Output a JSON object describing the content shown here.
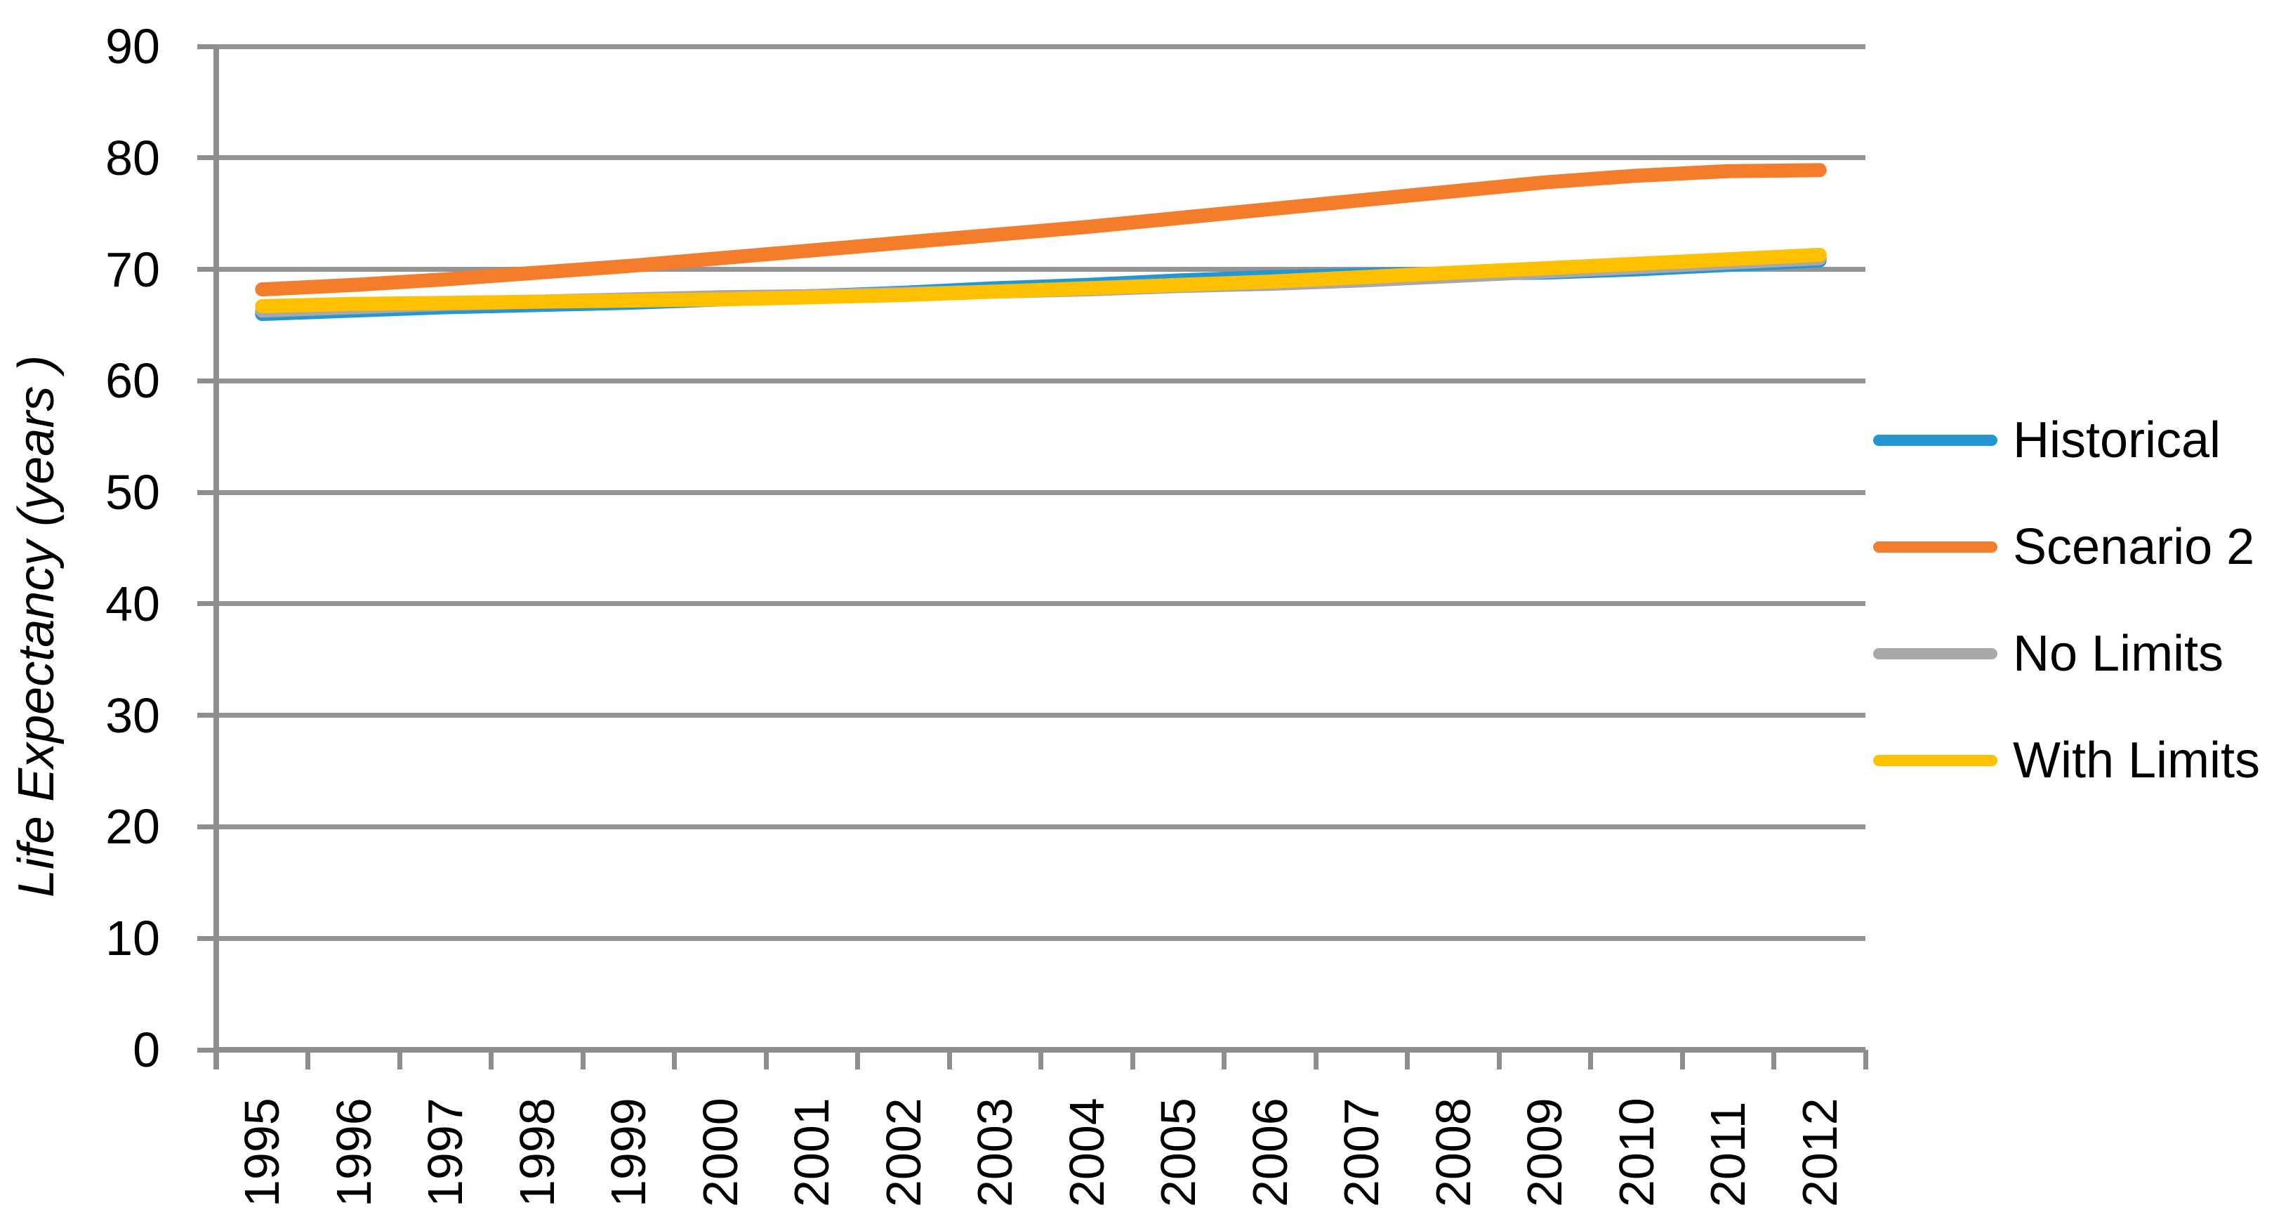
{
  "chart_data": {
    "type": "line",
    "title": "",
    "xlabel": "",
    "ylabel": "Life Expectancy (years )",
    "x": [
      1995,
      1996,
      1997,
      1998,
      1999,
      2000,
      2001,
      2002,
      2003,
      2004,
      2005,
      2006,
      2007,
      2008,
      2009,
      2010,
      2011,
      2012
    ],
    "xtick_labels": [
      "1995",
      "1996",
      "1997",
      "1998",
      "1999",
      "2000",
      "2001",
      "2002",
      "2003",
      "2004",
      "2005",
      "2006",
      "2007",
      "2008",
      "2009",
      "2010",
      "2011",
      "2012"
    ],
    "yticks": [
      0,
      10,
      20,
      30,
      40,
      50,
      60,
      70,
      80,
      90
    ],
    "ylim": [
      0,
      90
    ],
    "grid": "horizontal",
    "legend_position": "right",
    "series": [
      {
        "name": "Historical",
        "color": "#2397d4",
        "values": [
          66.0,
          66.3,
          66.6,
          66.8,
          67.0,
          67.3,
          67.6,
          67.9,
          68.3,
          68.6,
          69.0,
          69.3,
          69.5,
          69.6,
          69.7,
          70.0,
          70.4,
          70.8
        ]
      },
      {
        "name": "Scenario 2",
        "color": "#f47d2b",
        "values": [
          68.2,
          68.6,
          69.1,
          69.7,
          70.3,
          71.0,
          71.7,
          72.4,
          73.1,
          73.8,
          74.6,
          75.4,
          76.2,
          77.0,
          77.8,
          78.4,
          78.8,
          78.9
        ]
      },
      {
        "name": "No Limits",
        "color": "#a8a8a8",
        "values": [
          66.3,
          66.6,
          66.9,
          67.1,
          67.3,
          67.5,
          67.6,
          67.8,
          68.0,
          68.2,
          68.5,
          68.7,
          69.0,
          69.4,
          69.8,
          70.2,
          70.6,
          71.0
        ]
      },
      {
        "name": "With Limits",
        "color": "#ffc000",
        "values": [
          66.7,
          66.9,
          67.0,
          67.1,
          67.2,
          67.3,
          67.5,
          67.7,
          68.0,
          68.3,
          68.6,
          68.9,
          69.3,
          69.7,
          70.1,
          70.5,
          70.9,
          71.3
        ]
      }
    ],
    "colors": {
      "gridline": "#949494",
      "axis": "#8e8e8e",
      "text": "#000000",
      "background": "#ffffff"
    }
  }
}
